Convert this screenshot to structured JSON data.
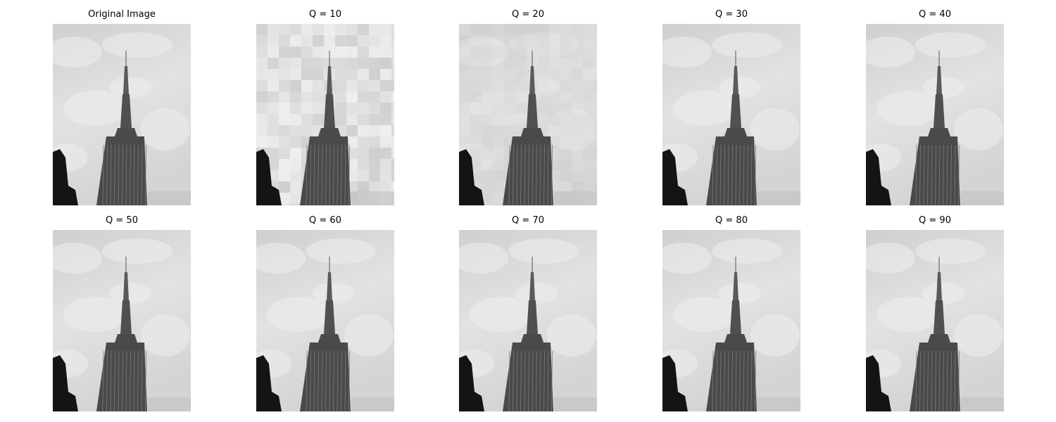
{
  "figure": {
    "panels": [
      {
        "title": "Original Image",
        "quality": null
      },
      {
        "title": "Q = 10",
        "quality": 10
      },
      {
        "title": "Q = 20",
        "quality": 20
      },
      {
        "title": "Q = 30",
        "quality": 30
      },
      {
        "title": "Q = 40",
        "quality": 40
      },
      {
        "title": "Q = 50",
        "quality": 50
      },
      {
        "title": "Q = 60",
        "quality": 60
      },
      {
        "title": "Q = 70",
        "quality": 70
      },
      {
        "title": "Q = 80",
        "quality": 80
      },
      {
        "title": "Q = 90",
        "quality": 90
      }
    ],
    "colors": {
      "sky": "#d6d6d6",
      "tower": "#4a4a4a",
      "foreground": "#141414"
    }
  }
}
